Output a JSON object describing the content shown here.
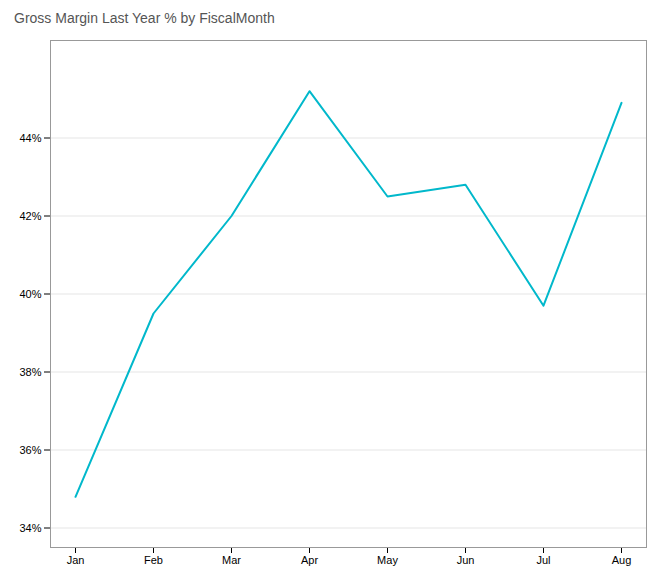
{
  "chart_data": {
    "type": "line",
    "title": "Gross Margin Last Year % by FiscalMonth",
    "categories": [
      "Jan",
      "Feb",
      "Mar",
      "Apr",
      "May",
      "Jun",
      "Jul",
      "Aug"
    ],
    "values": [
      34.8,
      39.5,
      42.0,
      45.2,
      42.5,
      42.8,
      39.7,
      44.9
    ],
    "color": "#01B8CB",
    "ylim": [
      33.5,
      46.5
    ],
    "yticks": [
      {
        "value": 34,
        "label": "34%"
      },
      {
        "value": 36,
        "label": "36%"
      },
      {
        "value": 38,
        "label": "38%"
      },
      {
        "value": 40,
        "label": "40%"
      },
      {
        "value": 42,
        "label": "42%"
      },
      {
        "value": 44,
        "label": "44%"
      }
    ],
    "grid": true
  }
}
